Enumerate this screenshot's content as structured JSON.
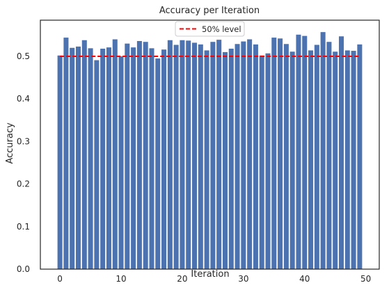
{
  "chart_data": {
    "type": "bar",
    "title": "Accuracy per Iteration",
    "xlabel": "Iteration",
    "ylabel": "Accuracy",
    "xlim": [
      -3.2,
      52.2
    ],
    "ylim": [
      0,
      0.585
    ],
    "x_ticks": [
      0,
      10,
      20,
      30,
      40,
      50
    ],
    "y_ticks": [
      0.0,
      0.1,
      0.2,
      0.3,
      0.4,
      0.5
    ],
    "x_tick_labels": [
      "0",
      "10",
      "20",
      "30",
      "40",
      "50"
    ],
    "y_tick_labels": [
      "0.0",
      "0.1",
      "0.2",
      "0.3",
      "0.4",
      "0.5"
    ],
    "grid": false,
    "legend_position": "top-center",
    "bar_color": "#4c72b0",
    "reference_line": {
      "label": "50% level",
      "y": 0.5,
      "x_range": [
        0,
        49
      ],
      "color": "#ff0000",
      "style": "dashed"
    },
    "categories": [
      0,
      1,
      2,
      3,
      4,
      5,
      6,
      7,
      8,
      9,
      10,
      11,
      12,
      13,
      14,
      15,
      16,
      17,
      18,
      19,
      20,
      21,
      22,
      23,
      24,
      25,
      26,
      27,
      28,
      29,
      30,
      31,
      32,
      33,
      34,
      35,
      36,
      37,
      38,
      39,
      40,
      41,
      42,
      43,
      44,
      45,
      46,
      47,
      48,
      49
    ],
    "values": [
      0.502,
      0.544,
      0.52,
      0.523,
      0.538,
      0.519,
      0.491,
      0.518,
      0.521,
      0.54,
      0.5,
      0.53,
      0.521,
      0.536,
      0.534,
      0.519,
      0.495,
      0.516,
      0.538,
      0.527,
      0.538,
      0.537,
      0.532,
      0.528,
      0.514,
      0.534,
      0.539,
      0.51,
      0.518,
      0.529,
      0.535,
      0.54,
      0.528,
      0.502,
      0.507,
      0.544,
      0.542,
      0.529,
      0.511,
      0.551,
      0.548,
      0.514,
      0.527,
      0.557,
      0.534,
      0.511,
      0.547,
      0.514,
      0.513,
      0.528
    ]
  }
}
